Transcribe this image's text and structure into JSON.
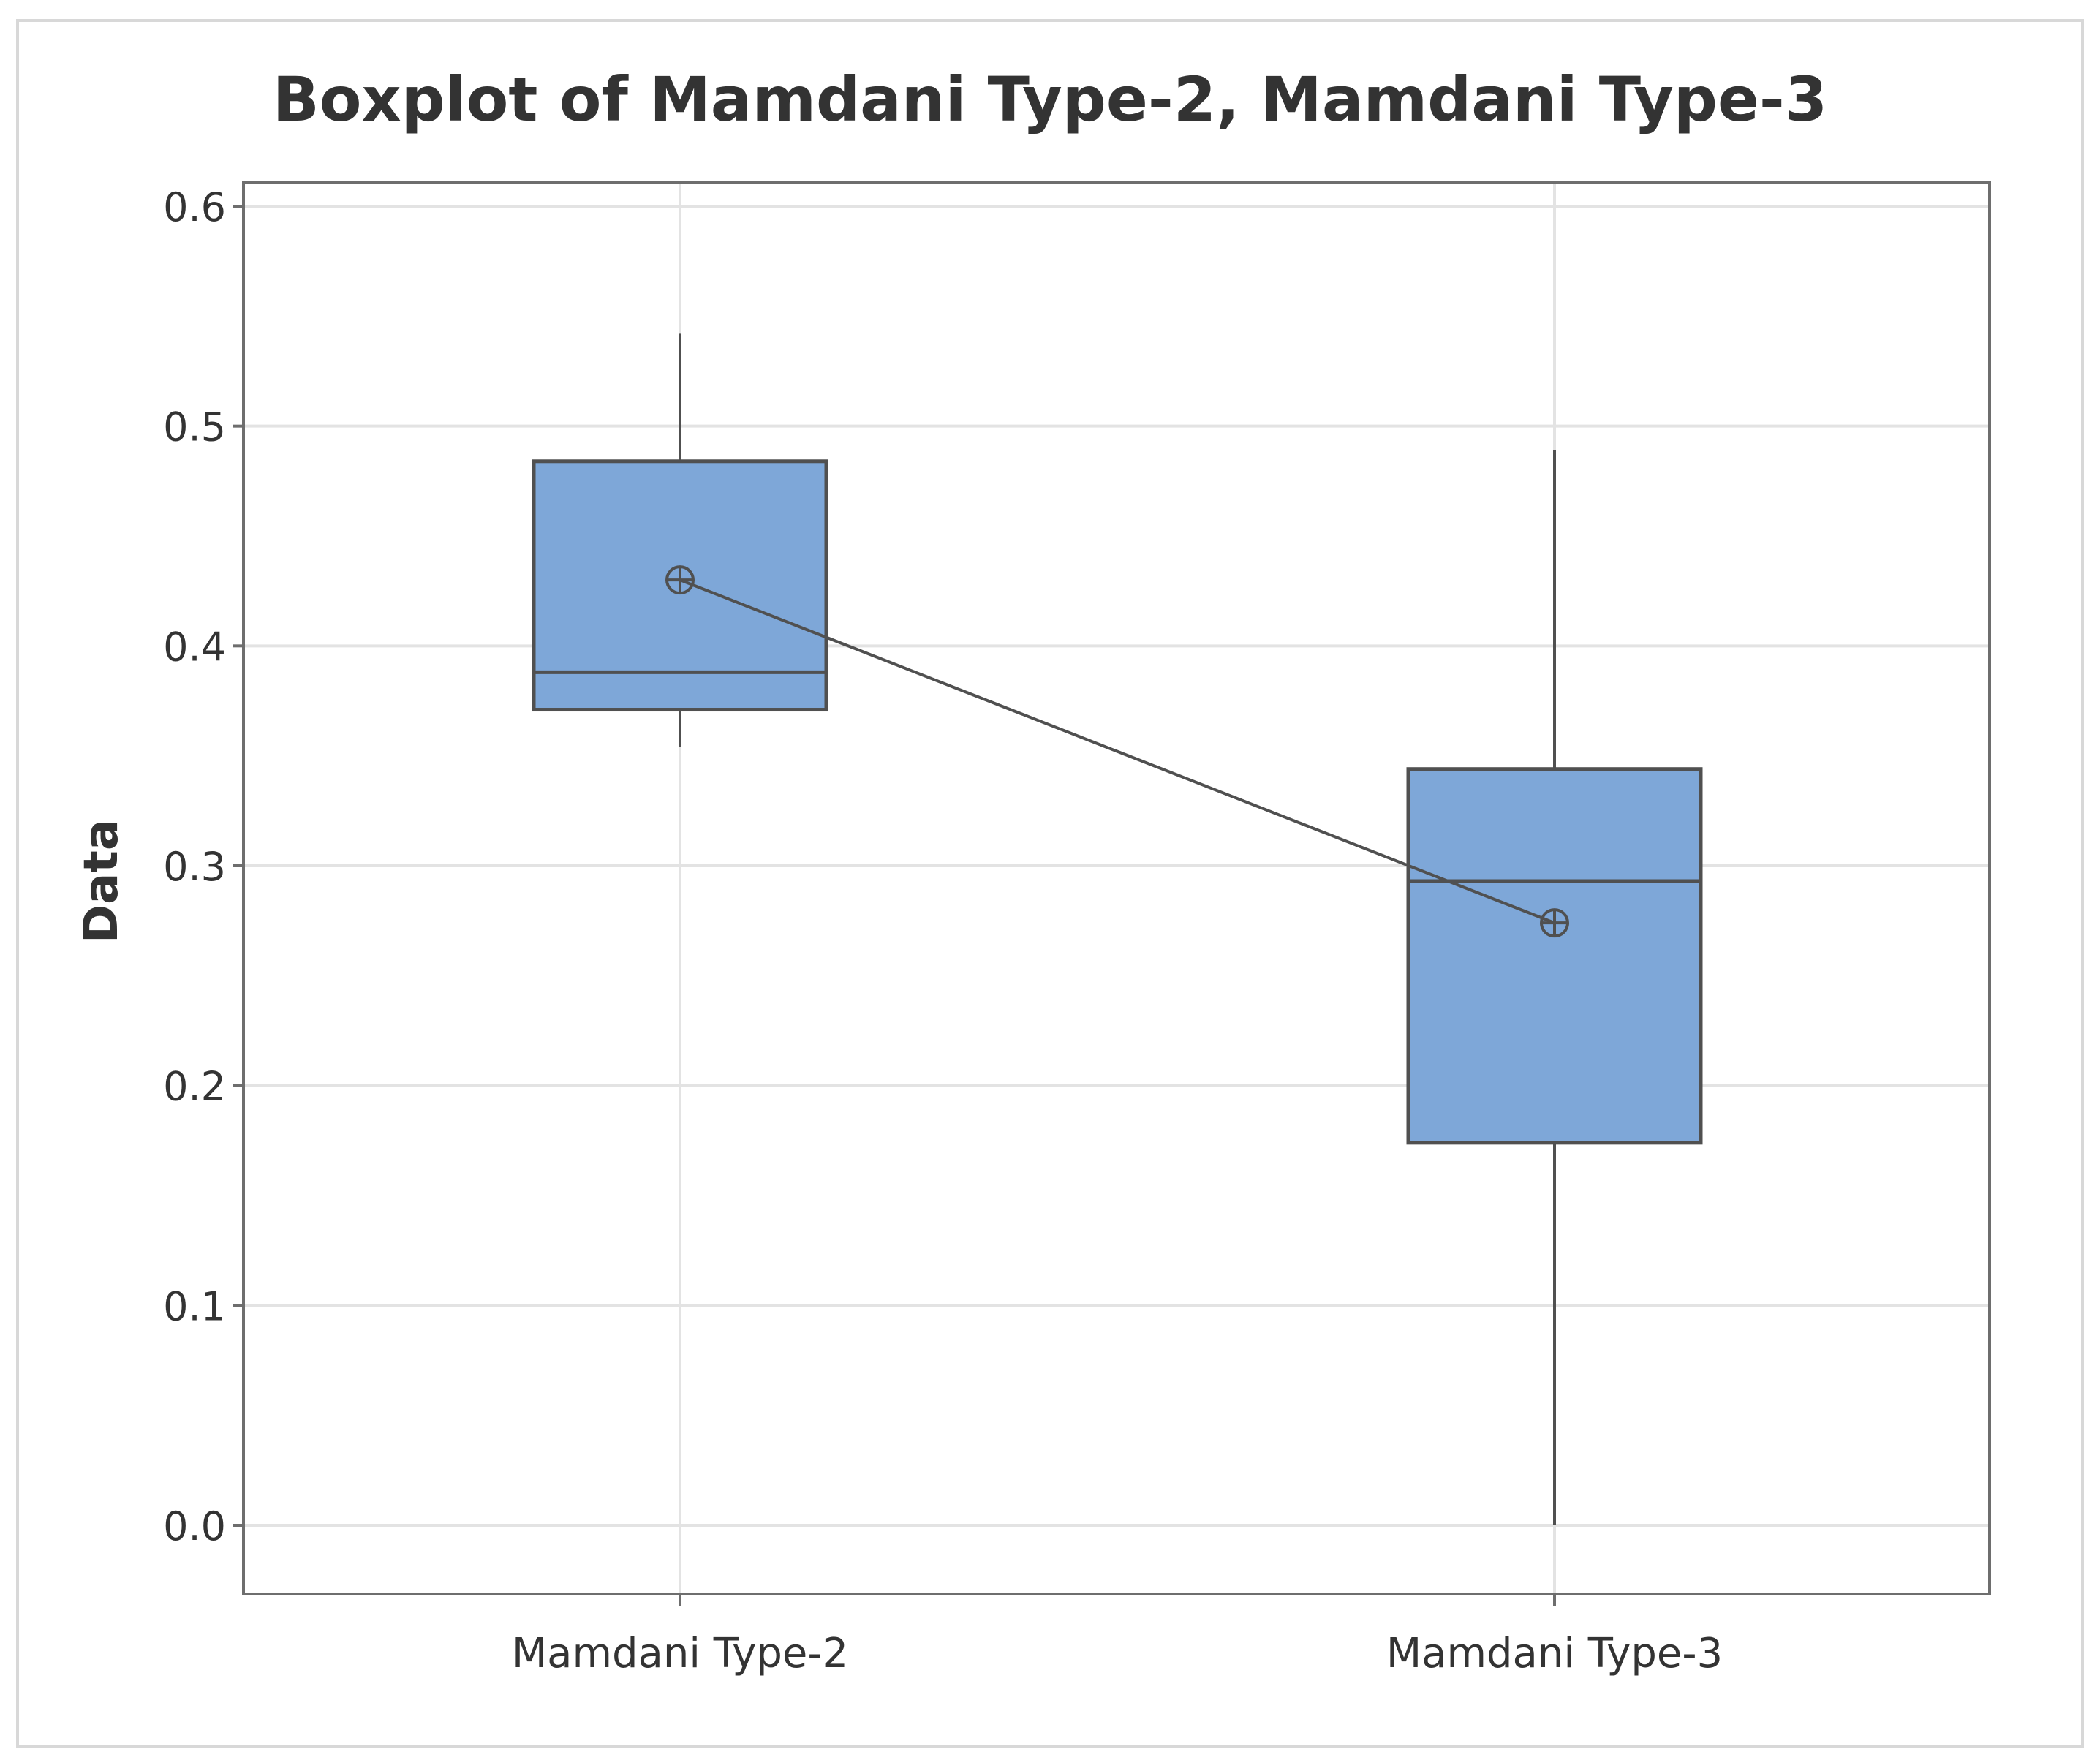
{
  "chart_data": {
    "type": "boxplot",
    "title": "Boxplot of Mamdani Type-2, Mamdani Type-3",
    "xlabel": "",
    "ylabel": "Data",
    "ylim": [
      0.0,
      0.6
    ],
    "yticks": [
      "0.0",
      "0.1",
      "0.2",
      "0.3",
      "0.4",
      "0.5",
      "0.6"
    ],
    "grid": true,
    "mean_connect_line": true,
    "box_color": "#7ea7d8",
    "line_color": "#505050",
    "categories": [
      "Mamdani Type-2",
      "Mamdani Type-3"
    ],
    "series": [
      {
        "category": "Mamdani Type-2",
        "whisker_low": 0.354,
        "q1": 0.371,
        "median": 0.388,
        "q3": 0.484,
        "whisker_high": 0.542,
        "mean": 0.43
      },
      {
        "category": "Mamdani Type-3",
        "whisker_low": 0.0,
        "q1": 0.174,
        "median": 0.293,
        "q3": 0.344,
        "whisker_high": 0.489,
        "mean": 0.274
      }
    ]
  }
}
